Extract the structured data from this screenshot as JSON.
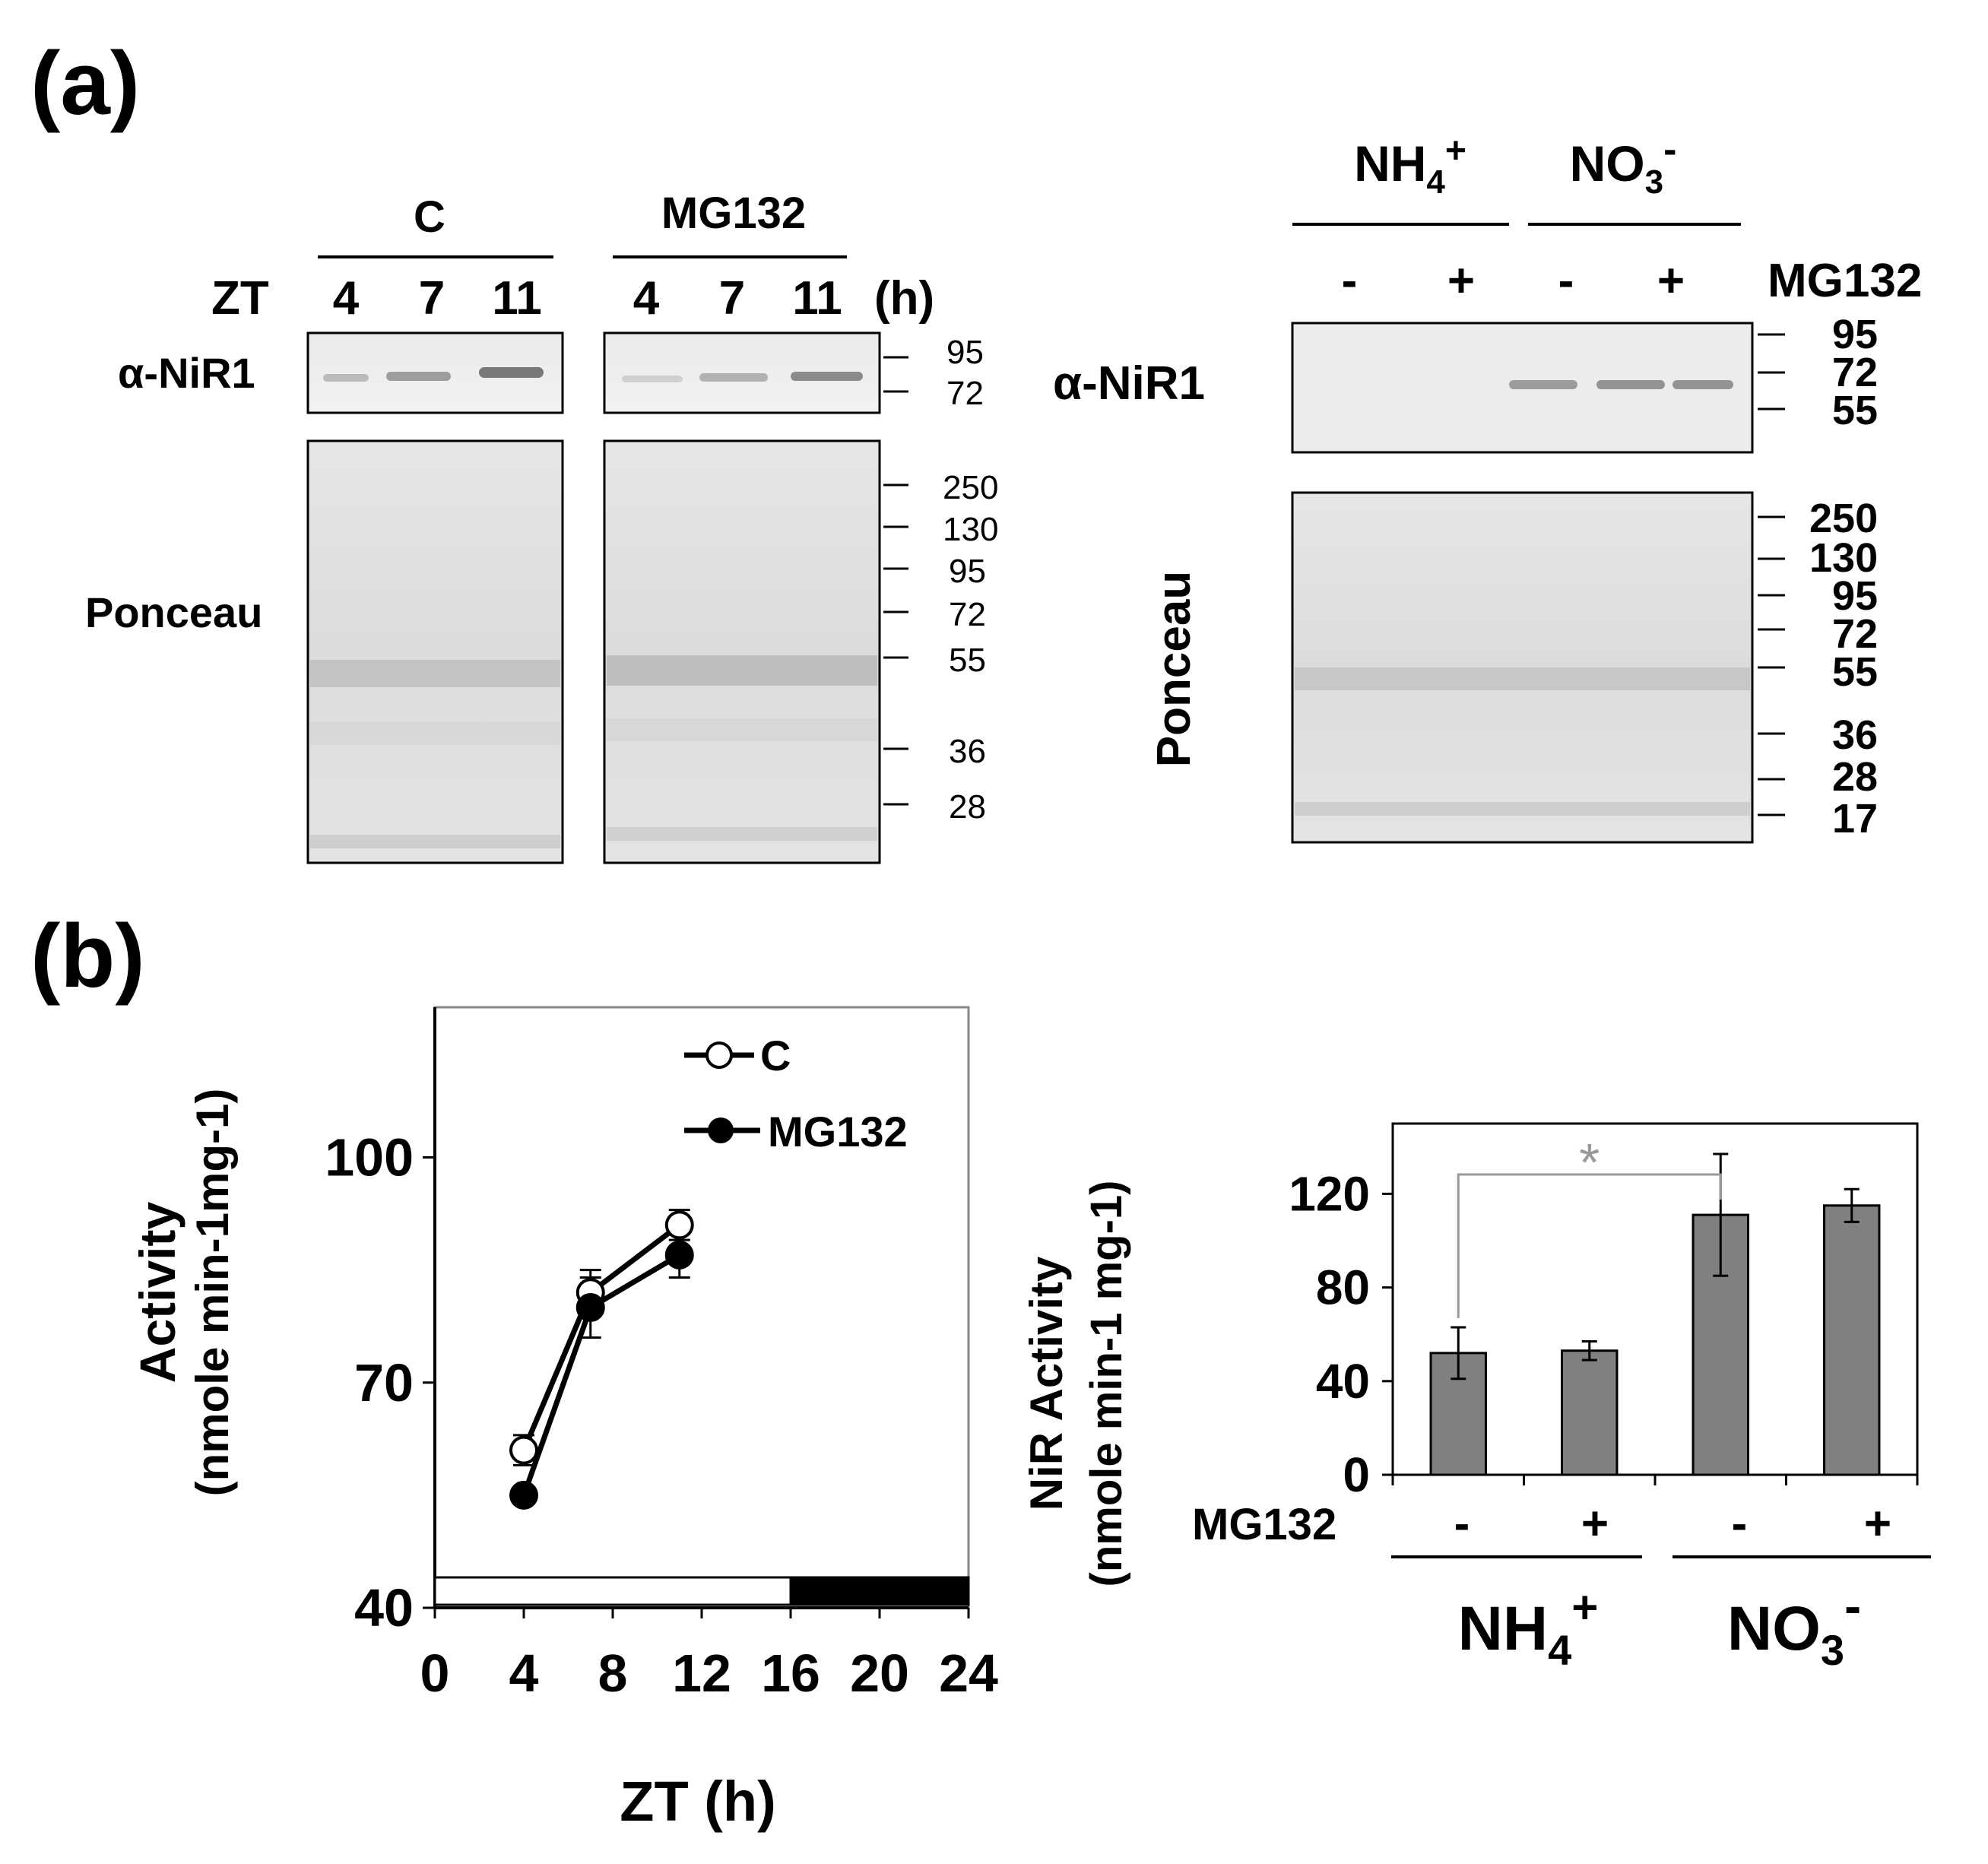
{
  "panel_a": {
    "label": "(a)",
    "left_blot": {
      "group_c": "C",
      "group_mg": "MG132",
      "zt_label": "ZT",
      "c_lanes": [
        "4",
        "7",
        "11"
      ],
      "mg_lanes": [
        "4",
        "7",
        "11"
      ],
      "unit": "(h)",
      "antibody": "α-NiR1",
      "stain": "Ponceau",
      "western_markers": [
        "95",
        "72"
      ],
      "ponceau_markers": [
        "250",
        "130",
        "95",
        "72",
        "55",
        "36",
        "28"
      ]
    },
    "right_blot": {
      "nh4": "NH4+",
      "no3": "NO3-",
      "lane_signs": [
        "-",
        "+",
        "-",
        "+"
      ],
      "treatment": "MG132",
      "antibody": "α-NiR1",
      "stain": "Ponceau",
      "western_markers": [
        "95",
        "72",
        "55"
      ],
      "ponceau_markers": [
        "250",
        "130",
        "95",
        "72",
        "55",
        "36",
        "28",
        "17"
      ]
    }
  },
  "panel_b": {
    "label": "(b)",
    "line_chart": {
      "ylabel_line1": "Activity",
      "ylabel_line2": "(nmole min-1mg-1)",
      "xlabel": "ZT (h)",
      "colors": {
        "line": "#000000",
        "light_bar": "#ffffff",
        "dark_bar": "#000000"
      }
    },
    "bar_chart": {
      "ylabel_line1": "NiR Activity",
      "ylabel_line2": "(nmole min-1 mg-1)",
      "treatment_label": "MG132",
      "group_labels": [
        "NH4+",
        "NO3-"
      ],
      "colors": {
        "bar": "#808080",
        "significance": "#999999"
      }
    }
  },
  "chart_data": [
    {
      "type": "line",
      "title": "",
      "xlabel": "ZT (h)",
      "ylabel": "Activity (nmole min-1mg-1)",
      "xlim": [
        0,
        24
      ],
      "ylim": [
        40,
        120
      ],
      "xticks": [
        0,
        4,
        8,
        12,
        16,
        20,
        24
      ],
      "yticks": [
        40,
        70,
        100
      ],
      "series": [
        {
          "name": "C",
          "marker": "open-circle",
          "x": [
            4,
            7,
            11
          ],
          "y": [
            61,
            82,
            91
          ],
          "error": [
            2,
            3,
            2
          ]
        },
        {
          "name": "MG132",
          "marker": "filled-circle",
          "x": [
            4,
            7,
            11
          ],
          "y": [
            55,
            80,
            87
          ],
          "error": [
            1,
            4,
            3
          ]
        }
      ],
      "light_dark_bar": [
        {
          "phase": "light",
          "from": 0,
          "to": 16
        },
        {
          "phase": "dark",
          "from": 16,
          "to": 24
        }
      ],
      "legend": "top-right"
    },
    {
      "type": "bar",
      "title": "",
      "xlabel": "",
      "ylabel": "NiR Activity (nmole min-1 mg-1)",
      "ylim": [
        0,
        150
      ],
      "yticks": [
        0,
        40,
        80,
        120
      ],
      "categories": [
        "NH4+ -",
        "NH4+ +",
        "NO3- -",
        "NO3- +"
      ],
      "mg132": [
        "-",
        "+",
        "-",
        "+"
      ],
      "values": [
        52,
        53,
        111,
        115
      ],
      "errors": [
        11,
        4,
        26,
        7
      ],
      "significance": {
        "between": [
          0,
          2
        ],
        "label": "*"
      }
    }
  ]
}
